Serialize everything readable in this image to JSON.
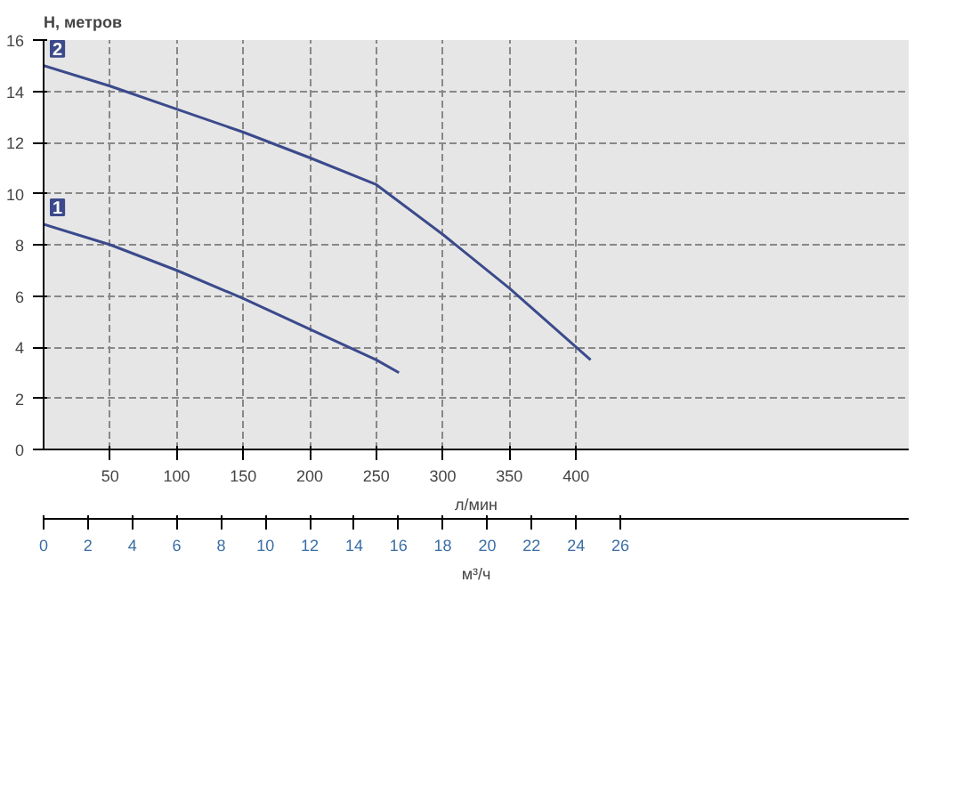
{
  "chart_data": {
    "type": "line",
    "xlabel": "л/мин",
    "x2label": "м³/ч",
    "ylabel": "Н, метров",
    "xlim": [
      0,
      650
    ],
    "xticks": [
      50,
      100,
      150,
      200,
      250,
      300,
      350,
      400
    ],
    "x2lim": [
      0,
      39
    ],
    "x2ticks": [
      0,
      2,
      4,
      6,
      8,
      10,
      12,
      14,
      16,
      18,
      20,
      22,
      24,
      26
    ],
    "ylim": [
      0,
      16
    ],
    "yticks": [
      0,
      2,
      4,
      6,
      8,
      10,
      12,
      14,
      16
    ],
    "grid": true,
    "marker": "none",
    "line_style": "solid",
    "series": [
      {
        "name": "1",
        "color": "#3b4a8c",
        "x": [
          0,
          50,
          100,
          150,
          200,
          250,
          267
        ],
        "values": [
          8.8,
          8.0,
          7.0,
          5.9,
          4.7,
          3.5,
          3.0
        ]
      },
      {
        "name": "2",
        "color": "#3b4a8c",
        "x": [
          0,
          50,
          100,
          150,
          200,
          250,
          300,
          350,
          411
        ],
        "values": [
          15.0,
          14.2,
          13.3,
          12.4,
          11.4,
          10.35,
          8.4,
          6.3,
          3.5
        ]
      }
    ]
  }
}
